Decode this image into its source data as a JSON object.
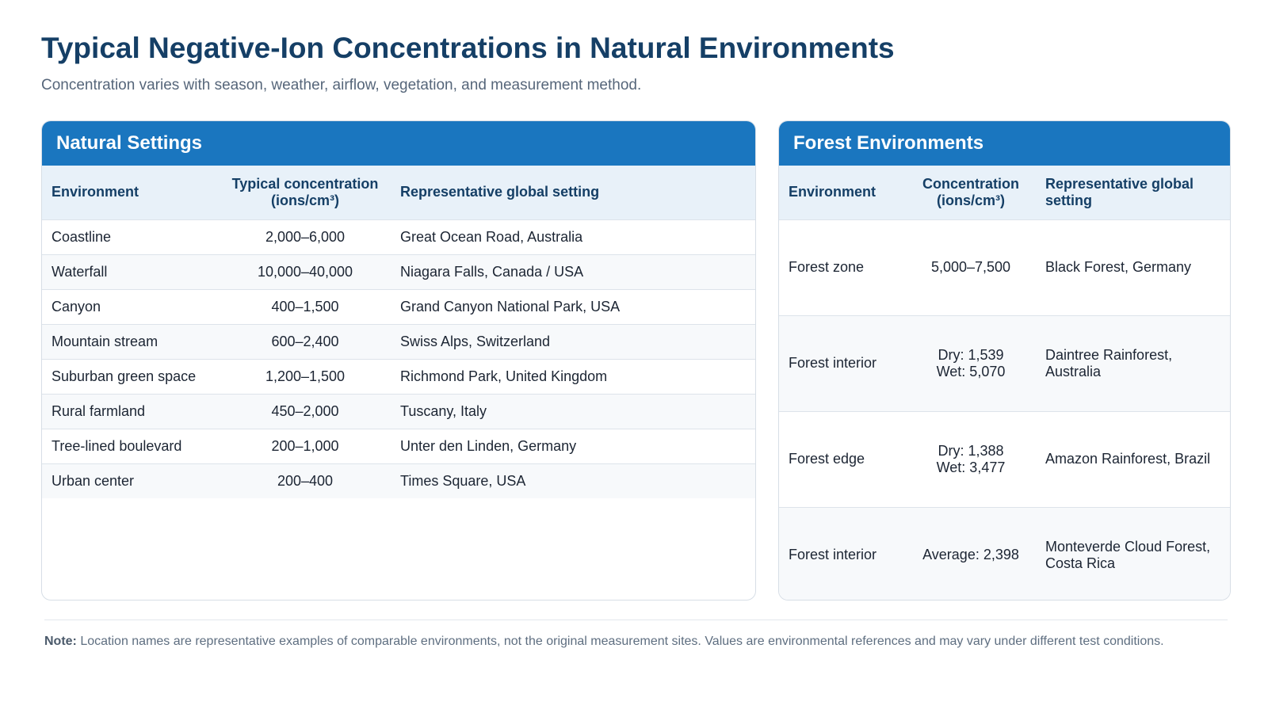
{
  "header": {
    "title": "Typical Negative-Ion Concentrations in Natural Environments",
    "subtitle": "Concentration varies with season, weather, airflow, vegetation, and measurement method."
  },
  "natural": {
    "title": "Natural Settings",
    "columns": [
      "Environment",
      "Typical concentration (ions/cm³)",
      "Representative global setting"
    ],
    "rows": [
      [
        "Coastline",
        "2,000–6,000",
        "Great Ocean Road, Australia"
      ],
      [
        "Waterfall",
        "10,000–40,000",
        "Niagara Falls, Canada / USA"
      ],
      [
        "Canyon",
        "400–1,500",
        "Grand Canyon National Park, USA"
      ],
      [
        "Mountain stream",
        "600–2,400",
        "Swiss Alps, Switzerland"
      ],
      [
        "Suburban green space",
        "1,200–1,500",
        "Richmond Park, United Kingdom"
      ],
      [
        "Rural farmland",
        "450–2,000",
        "Tuscany, Italy"
      ],
      [
        "Tree-lined boulevard",
        "200–1,000",
        "Unter den Linden, Germany"
      ],
      [
        "Urban center",
        "200–400",
        "Times Square, USA"
      ]
    ]
  },
  "forest": {
    "title": "Forest Environments",
    "columns": [
      "Environment",
      "Concentration (ions/cm³)",
      "Representative global setting"
    ],
    "rows": [
      {
        "env": "Forest zone",
        "conc": [
          "5,000–7,500"
        ],
        "setting": "Black Forest, Germany"
      },
      {
        "env": "Forest interior",
        "conc": [
          "Dry: 1,539",
          "Wet: 5,070"
        ],
        "setting": "Daintree Rainforest, Australia"
      },
      {
        "env": "Forest edge",
        "conc": [
          "Dry: 1,388",
          "Wet: 3,477"
        ],
        "setting": "Amazon Rainforest, Brazil"
      },
      {
        "env": "Forest interior",
        "conc": [
          "Average: 2,398"
        ],
        "setting": "Monteverde Cloud Forest, Costa Rica"
      }
    ]
  },
  "footer": {
    "note_label": "Note:",
    "note_text": "Location names are representative examples of comparable environments, not the original measurement sites. Values are environmental references and may vary under different test conditions."
  }
}
